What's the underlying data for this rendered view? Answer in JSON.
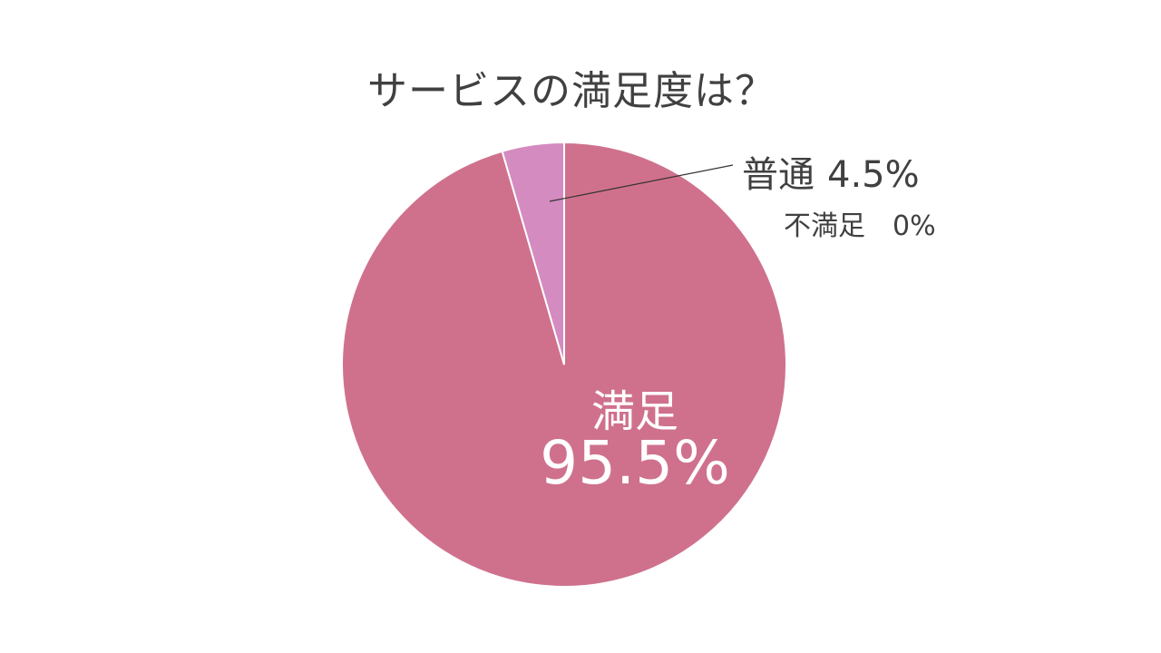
{
  "chart_data": {
    "type": "pie",
    "title": "サービスの満足度は？",
    "slices": [
      {
        "label": "満足",
        "value": 95.5,
        "display": "95.5%",
        "color": "#cf718d"
      },
      {
        "label": "普通",
        "value": 4.5,
        "display": "4.5%",
        "color": "#d48bc0"
      },
      {
        "label": "不満足",
        "value": 0,
        "display": "0%",
        "color": "#b85a7a"
      }
    ],
    "start_angle_deg": 0,
    "direction": "clockwise"
  },
  "colors": {
    "slice_border": "#ffffff",
    "leader_line": "#333333",
    "label_dark": "#404040",
    "label_light": "#ffffff"
  }
}
